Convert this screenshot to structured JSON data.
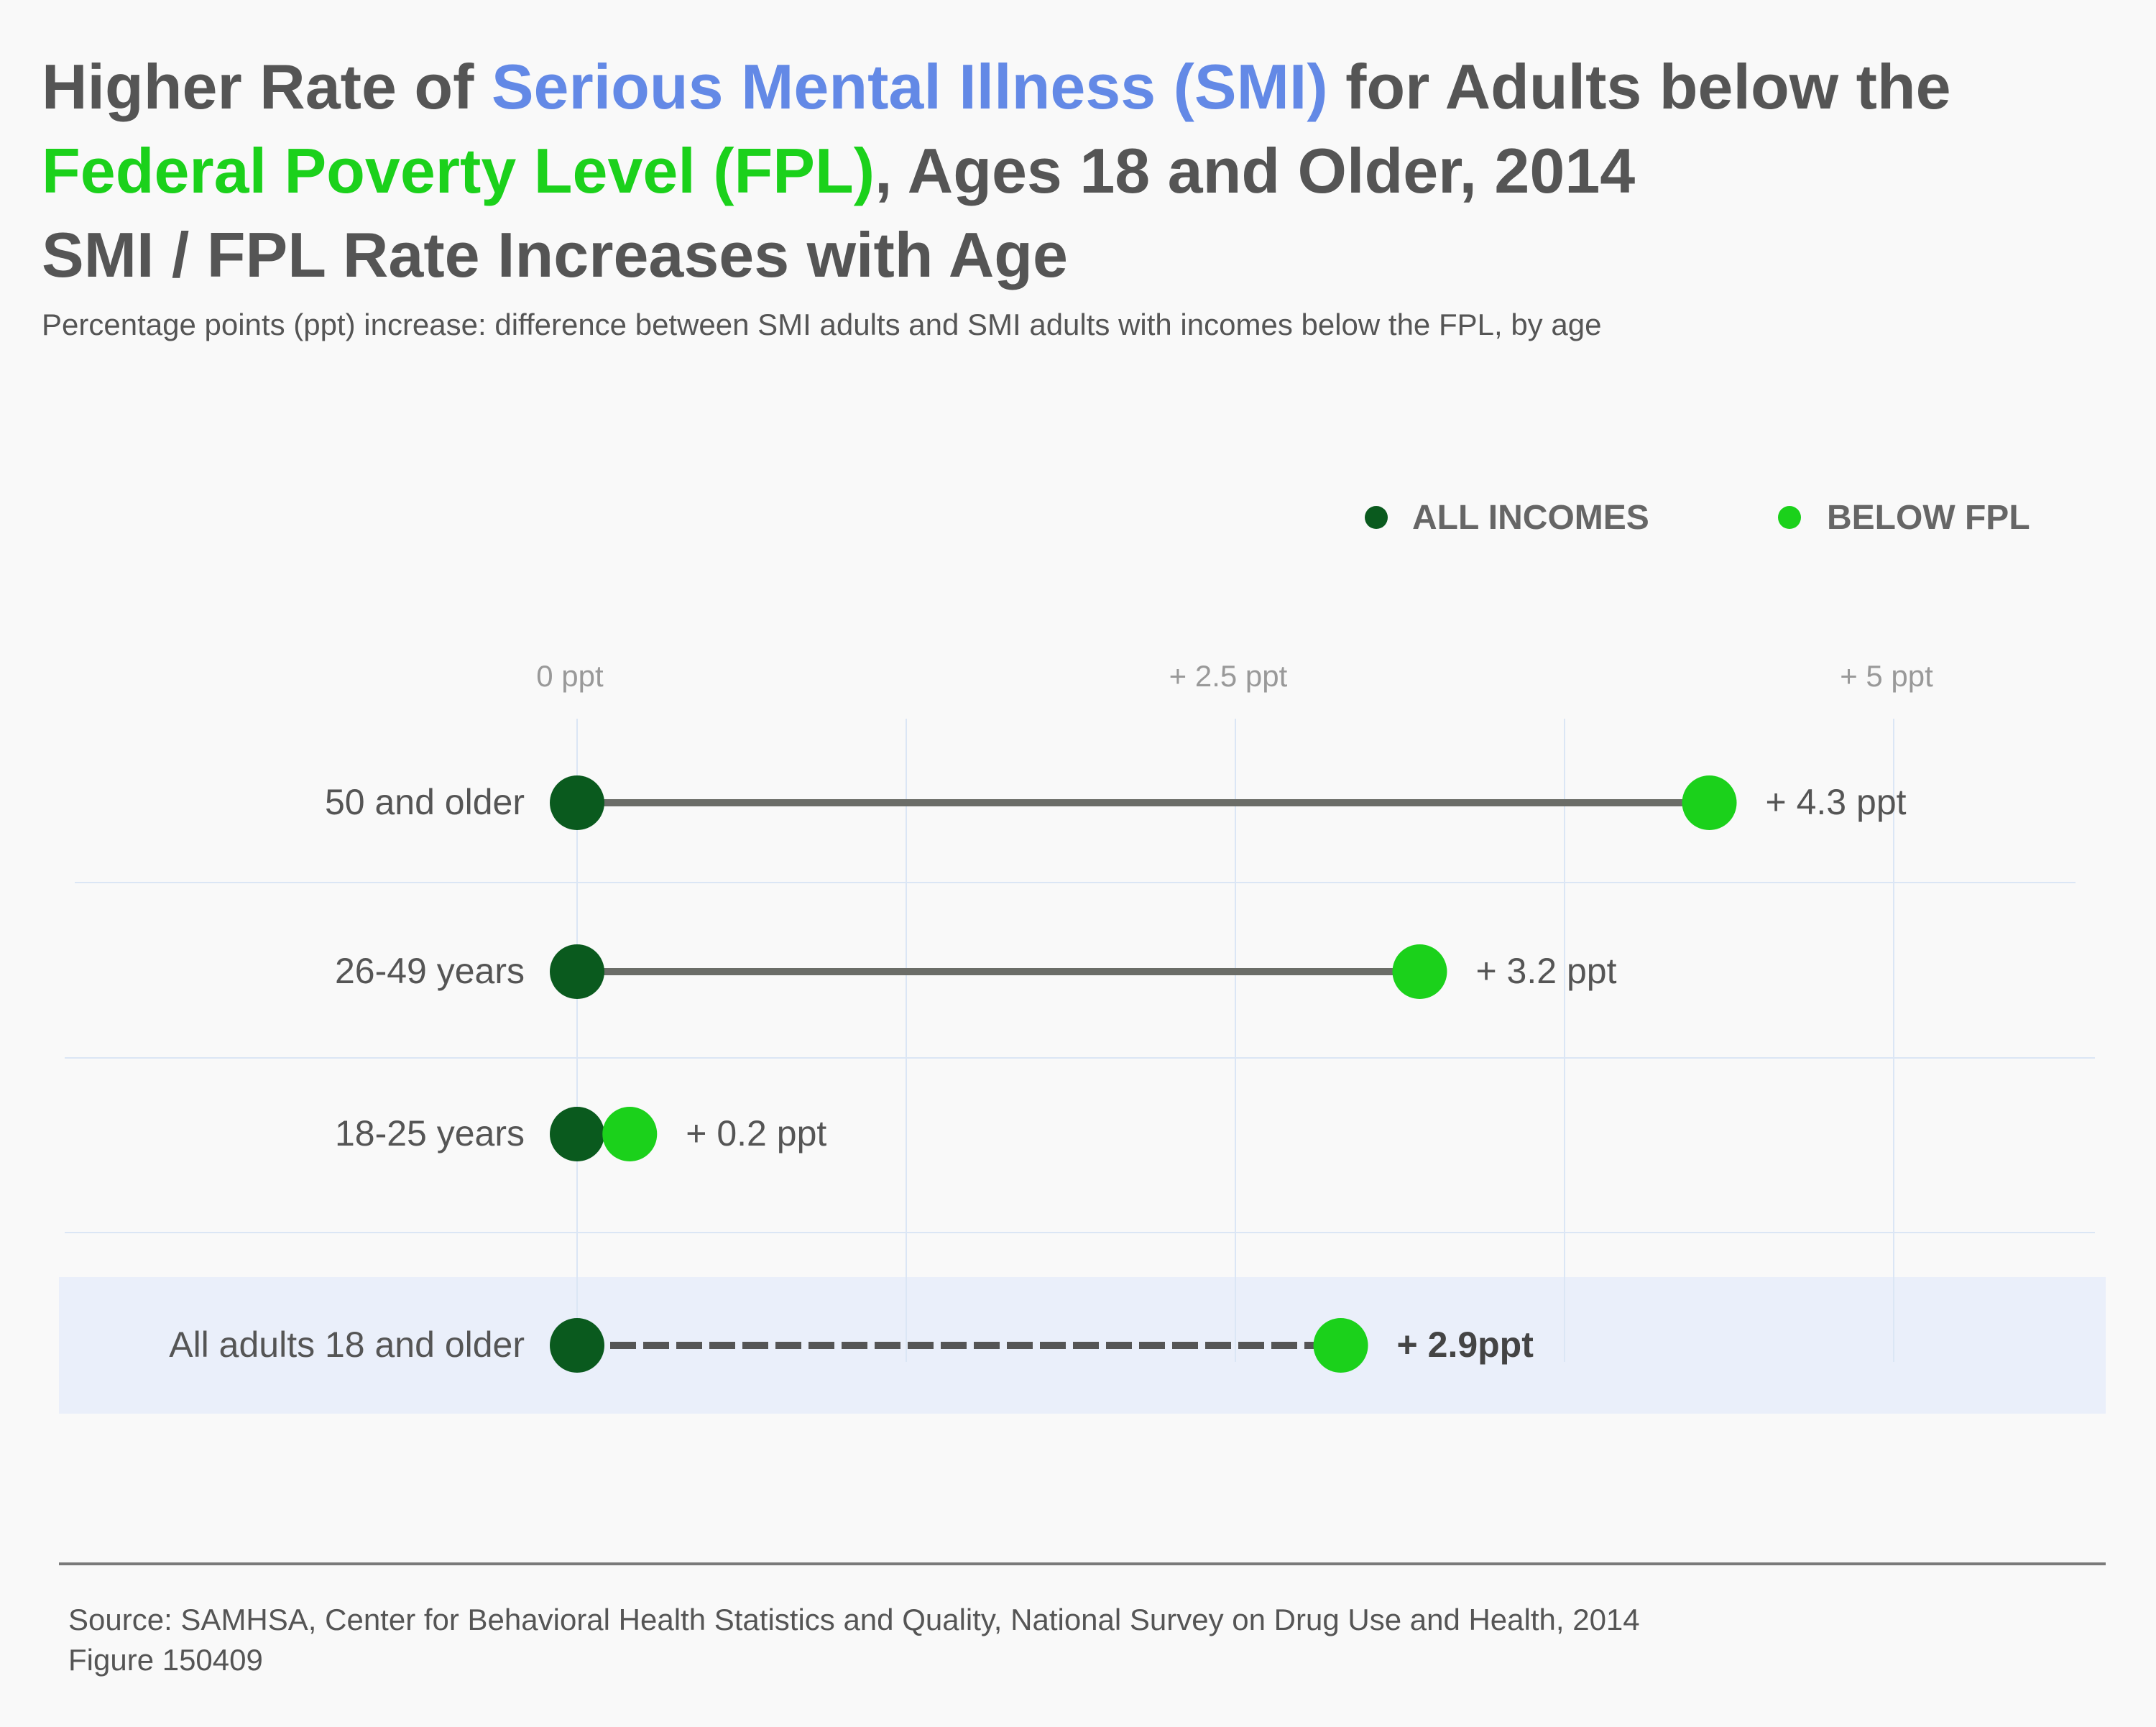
{
  "title": {
    "line1_a": "Higher Rate of ",
    "line1_b": "Serious Mental Illness (SMI)",
    "line1_c": " for Adults below the",
    "line2_a": "Federal Poverty Level (FPL)",
    "line2_b": ", Ages 18 and Older, 2014",
    "line3": "SMI / FPL Rate Increases with Age"
  },
  "subtitle": "Percentage points (ppt) increase: difference between SMI adults and SMI adults with incomes below the FPL, by age",
  "source": {
    "line1": "Source: SAMHSA, Center for Behavioral Health Statistics and Quality, National Survey on Drug Use and Health, 2014",
    "line2": "Figure 150409"
  },
  "colors": {
    "all_incomes": "#0a5a1e",
    "below_fpl": "#1bd11b",
    "connector": "#6b6d68",
    "highlight_band": "#eaeffa",
    "grid": "#dbe6f5",
    "title_accent_blue": "#6389e6"
  },
  "chart_data": {
    "type": "dumbbell",
    "xlim": [
      0,
      5
    ],
    "x_ticks": [
      {
        "value": 0,
        "label": "0 ppt"
      },
      {
        "value": 2.5,
        "label": "+ 2.5 ppt"
      },
      {
        "value": 5,
        "label": "+ 5 ppt"
      }
    ],
    "grid": true,
    "legend": {
      "placement": "top-right",
      "items": [
        {
          "label": "ALL INCOMES",
          "color": "#0a5a1e"
        },
        {
          "label": "BELOW FPL",
          "color": "#1bd11b"
        }
      ]
    },
    "series_names": [
      "ALL INCOMES",
      "BELOW FPL"
    ],
    "rows": [
      {
        "category": "50 and older",
        "all_incomes": 0,
        "below_fpl": 4.3,
        "label": "+ 4.3 ppt",
        "highlight": false
      },
      {
        "category": "26-49 years",
        "all_incomes": 0,
        "below_fpl": 3.2,
        "label": "+ 3.2 ppt",
        "highlight": false
      },
      {
        "category": "18-25 years",
        "all_incomes": 0,
        "below_fpl": 0.2,
        "label": "+ 0.2 ppt",
        "highlight": false
      },
      {
        "category": "All adults 18 and older",
        "all_incomes": 0,
        "below_fpl": 2.9,
        "label": "+ 2.9ppt",
        "highlight": true
      }
    ]
  }
}
